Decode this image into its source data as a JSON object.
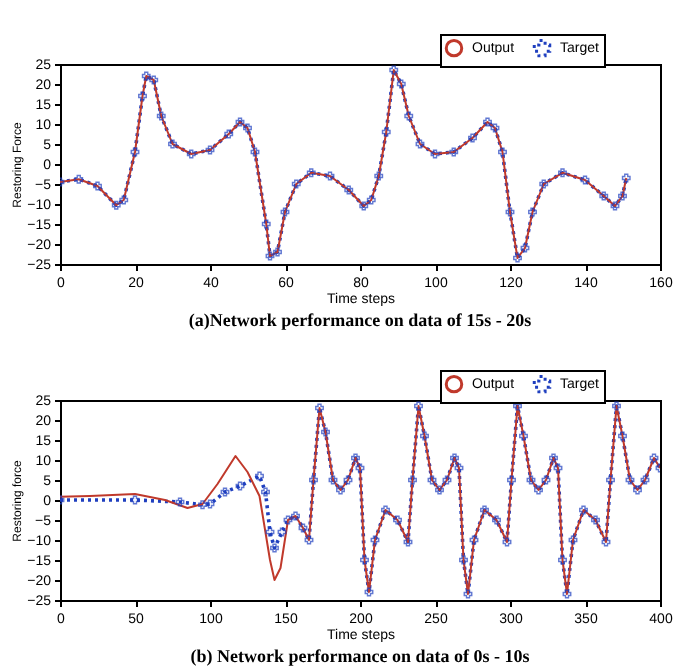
{
  "chart_data": [
    {
      "type": "line",
      "title": "(a)Network performance on data of 15s - 20s",
      "xlabel": "Time steps",
      "ylabel": "Restoring Force",
      "xlim": [
        0,
        160
      ],
      "xticks": [
        0,
        20,
        40,
        60,
        80,
        100,
        120,
        140,
        160
      ],
      "ylim": [
        -25,
        25
      ],
      "yticks": [
        -25,
        -20,
        -15,
        -10,
        -5,
        0,
        5,
        10,
        15,
        20,
        25
      ],
      "legend": "top right",
      "grid": false,
      "x": [
        0,
        5,
        10,
        15,
        17,
        20,
        22,
        23,
        25,
        27,
        30,
        35,
        40,
        45,
        48,
        50,
        52,
        55,
        56,
        58,
        60,
        63,
        67,
        72,
        77,
        81,
        83,
        85,
        87,
        89,
        91,
        93,
        96,
        100,
        105,
        110,
        114,
        116,
        118,
        120,
        122,
        124,
        126,
        129,
        134,
        140,
        145,
        148,
        150,
        151
      ],
      "series": [
        {
          "name": "Output",
          "color": "#c0392b",
          "line_style": "solid",
          "marker": "none",
          "values": [
            -4.5,
            -3.8,
            -5.5,
            -10.3,
            -9,
            3,
            17,
            22,
            21,
            12,
            5,
            2.5,
            3.5,
            7.5,
            10.5,
            9,
            3,
            -15,
            -23,
            -22,
            -12,
            -5,
            -2.2,
            -3,
            -6.5,
            -10.5,
            -9,
            -3,
            8,
            23.5,
            20,
            12,
            5,
            2.5,
            3,
            6.5,
            10.5,
            9,
            3,
            -12,
            -23.5,
            -21,
            -12,
            -5,
            -2.2,
            -4,
            -8,
            -10.5,
            -8,
            -3.5
          ]
        },
        {
          "name": "Target",
          "color": "#1f3fbf",
          "line_style": "dotted",
          "marker": "cross",
          "values": [
            -4.5,
            -3.8,
            -5.5,
            -10.3,
            -9,
            3,
            17,
            22,
            21,
            12,
            5,
            2.5,
            3.5,
            7.5,
            10.5,
            9,
            3,
            -15,
            -23,
            -22,
            -12,
            -5,
            -2.2,
            -3,
            -6.5,
            -10.5,
            -9,
            -3,
            8,
            23.5,
            20,
            12,
            5,
            2.5,
            3,
            6.5,
            10.5,
            9,
            3,
            -12,
            -23.5,
            -21,
            -12,
            -5,
            -2.2,
            -4,
            -8,
            -10.5,
            -8,
            -3.5
          ]
        }
      ]
    },
    {
      "type": "line",
      "title": "(b) Network performance on data of 0s - 10s",
      "xlabel": "Time steps",
      "ylabel": "Restoring force",
      "xlim": [
        0,
        400
      ],
      "xticks": [
        0,
        50,
        100,
        150,
        200,
        250,
        300,
        350,
        400
      ],
      "ylim": [
        -25,
        25
      ],
      "yticks": [
        -25,
        -20,
        -15,
        -10,
        -5,
        0,
        5,
        10,
        15,
        20,
        25
      ],
      "legend": "top right",
      "grid": false,
      "series": [
        {
          "name": "Output",
          "color": "#c0392b",
          "line_style": "solid",
          "marker": "none",
          "x": [
            0,
            20,
            50,
            70,
            85,
            95,
            105,
            117,
            125,
            133,
            140,
            143,
            147,
            152,
            157,
            162,
            166,
            169,
            173,
            177,
            182,
            187,
            192,
            197,
            200,
            203,
            206,
            210,
            217,
            225,
            232,
            235,
            239,
            243,
            248,
            253,
            258,
            263,
            266,
            269,
            272,
            276,
            283,
            291,
            298,
            301,
            305,
            309,
            314,
            319,
            324,
            329,
            332,
            335,
            338,
            342,
            349,
            357,
            364,
            367,
            371,
            375,
            380,
            385,
            390,
            396,
            400
          ],
          "values": [
            0.8,
            1,
            1.5,
            0,
            -2,
            -1,
            4,
            11,
            7,
            1,
            -15,
            -20,
            -17,
            -5,
            -4,
            -7,
            -10,
            5,
            23,
            17,
            5,
            2.5,
            5,
            10.5,
            8,
            -15,
            -23,
            -10,
            -2.5,
            -5,
            -10.5,
            5,
            23.5,
            16,
            5,
            2.5,
            5,
            10.5,
            8,
            -15,
            -23.5,
            -10,
            -2.5,
            -5,
            -10.5,
            5,
            23.5,
            16,
            5,
            2.5,
            5,
            10.5,
            8,
            -15,
            -23.5,
            -10,
            -2.5,
            -5,
            -10.5,
            5,
            23.5,
            16,
            5,
            2.5,
            5,
            10.5,
            8
          ]
        },
        {
          "name": "Target",
          "color": "#1f3fbf",
          "line_style": "dotted",
          "marker": "cross",
          "x": [
            0,
            50,
            80,
            95,
            100,
            110,
            120,
            133,
            137,
            140,
            143,
            148,
            152,
            157,
            162,
            166,
            169,
            173,
            177,
            182,
            187,
            192,
            197,
            200,
            203,
            206,
            210,
            217,
            225,
            232,
            235,
            239,
            243,
            248,
            253,
            258,
            263,
            266,
            269,
            272,
            276,
            283,
            291,
            298,
            301,
            305,
            309,
            314,
            319,
            324,
            329,
            332,
            335,
            338,
            342,
            349,
            357,
            364,
            367,
            371,
            375,
            380,
            385,
            390,
            396,
            400
          ],
          "values": [
            0,
            0,
            -0.5,
            -1.2,
            -1,
            2,
            3.5,
            6,
            2,
            -8,
            -12,
            -8,
            -5,
            -4,
            -7,
            -10,
            5,
            23,
            17,
            5,
            2.5,
            5,
            10.5,
            8,
            -15,
            -23,
            -10,
            -2.5,
            -5,
            -10.5,
            5,
            23.5,
            16,
            5,
            2.5,
            5,
            10.5,
            8,
            -15,
            -23.5,
            -10,
            -2.5,
            -5,
            -10.5,
            5,
            23.5,
            16,
            5,
            2.5,
            5,
            10.5,
            8,
            -15,
            -23.5,
            -10,
            -2.5,
            -5,
            -10.5,
            5,
            23.5,
            16,
            5,
            2.5,
            5,
            10.5,
            8
          ]
        }
      ]
    }
  ]
}
